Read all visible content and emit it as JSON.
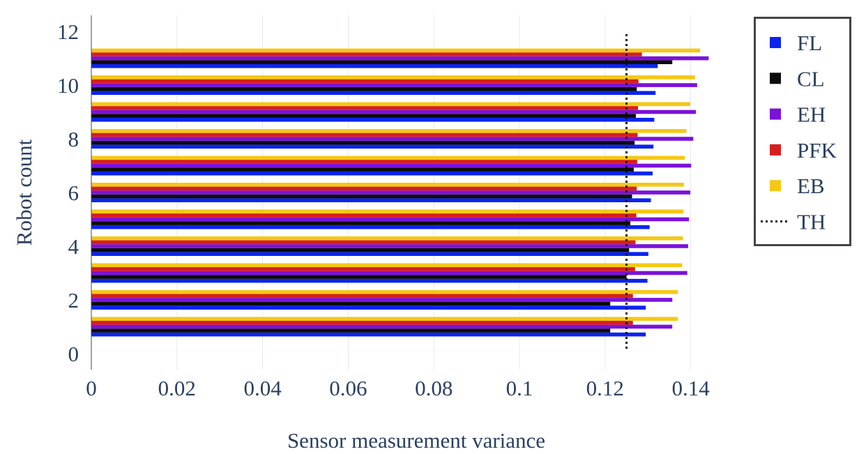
{
  "chart_data": {
    "type": "bar",
    "orientation": "horizontal",
    "title": "",
    "xlabel": "Sensor measurement variance",
    "ylabel": "Robot count",
    "xlim": [
      0,
      0.15
    ],
    "ylim": [
      -0.6,
      12.6
    ],
    "x_ticks": [
      0,
      0.02,
      0.04,
      0.06,
      0.08,
      0.1,
      0.12,
      0.14
    ],
    "x_tick_labels": [
      "0",
      "0.02",
      "0.04",
      "0.06",
      "0.08",
      "0.1",
      "0.12",
      "0.14"
    ],
    "y_ticks": [
      0,
      2,
      4,
      6,
      8,
      10,
      12
    ],
    "y_tick_labels": [
      "0",
      "2",
      "4",
      "6",
      "8",
      "10",
      "12"
    ],
    "grid": true,
    "legend_position": "right",
    "categories": [
      1,
      2,
      3,
      4,
      5,
      6,
      7,
      8,
      9,
      10,
      11
    ],
    "series": [
      {
        "name": "FL",
        "color": "#0a24f0",
        "values": [
          0.1295,
          0.1295,
          0.1299,
          0.1301,
          0.1304,
          0.1307,
          0.1311,
          0.1313,
          0.1315,
          0.1318,
          0.1323
        ]
      },
      {
        "name": "CL",
        "color": "#0b0b0b",
        "values": [
          0.1212,
          0.1212,
          0.125,
          0.1256,
          0.1259,
          0.1263,
          0.1267,
          0.1269,
          0.1272,
          0.1274,
          0.1357
        ]
      },
      {
        "name": "EH",
        "color": "#7b12d8",
        "values": [
          0.1357,
          0.1357,
          0.1392,
          0.1394,
          0.1396,
          0.1399,
          0.1401,
          0.1406,
          0.1412,
          0.1415,
          0.1442
        ]
      },
      {
        "name": "PFK",
        "color": "#d81e1e",
        "values": [
          0.1265,
          0.1265,
          0.127,
          0.1271,
          0.1273,
          0.1274,
          0.1275,
          0.1276,
          0.1277,
          0.1278,
          0.1286
        ]
      },
      {
        "name": "EB",
        "color": "#f5c816",
        "values": [
          0.137,
          0.137,
          0.138,
          0.1382,
          0.1383,
          0.1384,
          0.1386,
          0.139,
          0.1399,
          0.141,
          0.1422
        ]
      }
    ],
    "threshold": {
      "name": "TH",
      "value": 0.125,
      "style": "dotted",
      "color": "#111111"
    }
  }
}
